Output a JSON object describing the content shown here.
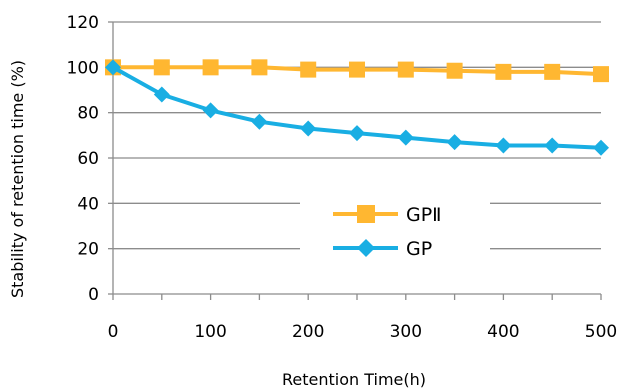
{
  "chart_data": {
    "type": "line",
    "xlabel": "Retention Time(h)",
    "ylabel": "Stability of retention time (%)",
    "xlim": [
      0,
      500
    ],
    "ylim": [
      0,
      120
    ],
    "x_ticks": [
      "0",
      "100",
      "200",
      "300",
      "400",
      "500"
    ],
    "y_ticks": [
      "0",
      "20",
      "40",
      "60",
      "80",
      "100",
      "120"
    ],
    "grid": "horizontal",
    "legend_placement": "center-right",
    "x": [
      0,
      50,
      100,
      150,
      200,
      250,
      300,
      350,
      400,
      450,
      500
    ],
    "series": [
      {
        "name": "GPⅡ",
        "color": "#FFB731",
        "marker": "square",
        "values": [
          100,
          100,
          100,
          100,
          99,
          99,
          99,
          98.5,
          98,
          98,
          97
        ]
      },
      {
        "name": "GP",
        "color": "#19AEE3",
        "marker": "diamond",
        "values": [
          100,
          88,
          81,
          76,
          73,
          71,
          69,
          67,
          65.5,
          65.5,
          64.5
        ]
      }
    ]
  }
}
